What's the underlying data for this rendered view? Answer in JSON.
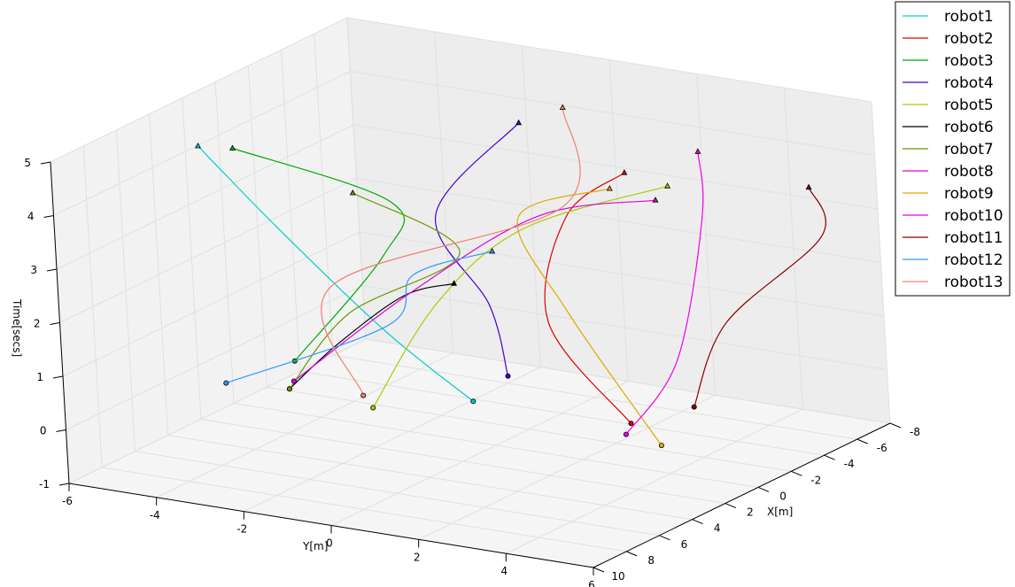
{
  "chart_data": {
    "type": "line",
    "projection": "3d",
    "title": "",
    "xlabel": "X[m]",
    "ylabel": "Y[m]",
    "zlabel": "Time[secs]",
    "xlim": [
      -8,
      10
    ],
    "ylim": [
      -6,
      6
    ],
    "zlim": [
      -1,
      5
    ],
    "x_ticks": [
      "-8",
      "-6",
      "-4",
      "-2",
      "0",
      "2",
      "4",
      "6",
      "8",
      "10"
    ],
    "y_ticks": [
      "-6",
      "-4",
      "-2",
      "0",
      "2",
      "4",
      "6"
    ],
    "z_ticks": [
      "-1",
      "0",
      "1",
      "2",
      "3",
      "4",
      "5"
    ],
    "grid": true,
    "legend_position": "top-right",
    "start_marker": "circle",
    "end_marker": "triangle",
    "series": [
      {
        "name": "robot1",
        "color": "#00cccc",
        "x": [
          1.2,
          3.5,
          4.2,
          3.8
        ],
        "y": [
          0.0,
          -1.0,
          -3.0,
          -5.0
        ],
        "z": [
          0,
          1.5,
          3.2,
          4.5
        ]
      },
      {
        "name": "robot2",
        "color": "#dd0000",
        "x": [
          0.9,
          1.6,
          -1.6,
          -1.6
        ],
        "y": [
          3.5,
          2.0,
          1.3,
          2.7
        ],
        "z": [
          0,
          1.8,
          3.2,
          4.2
        ]
      },
      {
        "name": "robot3",
        "color": "#00aa00",
        "x": [
          0.1,
          -2.7,
          -1.3,
          1.0
        ],
        "y": [
          -4.5,
          -3.4,
          -2.6,
          -5.3
        ],
        "z": [
          0,
          1.7,
          3.0,
          4.0
        ]
      },
      {
        "name": "robot4",
        "color": "#4400cc",
        "x": [
          -1.7,
          -0.6,
          -0.8,
          -3.2
        ],
        "y": [
          -0.3,
          -0.2,
          -1.4,
          -0.3
        ],
        "z": [
          0,
          1.5,
          3.0,
          4.5
        ]
      },
      {
        "name": "robot5",
        "color": "#aacc00",
        "x": [
          3.3,
          0.4,
          -0.8,
          0.5
        ],
        "y": [
          -1.5,
          -1.0,
          0.6,
          4.5
        ],
        "z": [
          0,
          1.6,
          3.0,
          4.5
        ]
      },
      {
        "name": "robot6",
        "color": "#000000",
        "x": [
          2.8,
          1.3,
          -0.7,
          0.4
        ],
        "y": [
          -3.6,
          -3.0,
          -2.2,
          -0.6
        ],
        "z": [
          0,
          0.7,
          1.4,
          2.0
        ]
      },
      {
        "name": "robot7",
        "color": "#669900",
        "x": [
          2.8,
          -0.2,
          -2.6,
          -1.6
        ],
        "y": [
          -3.6,
          -3.3,
          -1.6,
          -3.6
        ],
        "z": [
          0,
          1.0,
          2.0,
          3.0
        ]
      },
      {
        "name": "robot8",
        "color": "#dd00dd",
        "x": [
          2.0,
          -0.6,
          -1.2,
          1.0
        ],
        "y": [
          -3.8,
          -2.0,
          0.8,
          4.4
        ],
        "z": [
          0,
          1.5,
          3.2,
          4.3
        ]
      },
      {
        "name": "robot9",
        "color": "#ddaa00",
        "x": [
          2.5,
          0.4,
          -0.8,
          0.6
        ],
        "y": [
          4.8,
          2.0,
          0.5,
          3.2
        ],
        "z": [
          0,
          1.8,
          3.2,
          4.3
        ]
      },
      {
        "name": "robot10",
        "color": "#ee00ee",
        "x": [
          2.0,
          1.8,
          -4.5,
          -3.2
        ],
        "y": [
          3.8,
          5.0,
          3.3,
          3.8
        ],
        "z": [
          0,
          1.5,
          3.0,
          4.5
        ]
      },
      {
        "name": "robot11",
        "color": "#880000",
        "x": [
          -1.6,
          -2.5,
          -4.6,
          -4.0
        ],
        "y": [
          4.0,
          4.5,
          6.0,
          6.0
        ],
        "z": [
          0,
          1.5,
          3.0,
          4.0
        ]
      },
      {
        "name": "robot12",
        "color": "#3399ff",
        "x": [
          3.2,
          -0.2,
          -0.8,
          -1.2
        ],
        "y": [
          -4.9,
          -2.4,
          -2.0,
          -0.3
        ],
        "z": [
          0,
          0.9,
          1.8,
          2.4
        ]
      },
      {
        "name": "robot13",
        "color": "#f08070",
        "x": [
          2.3,
          0.5,
          -3.5,
          -3.8
        ],
        "y": [
          -2.1,
          -3.4,
          0.5,
          0.5
        ],
        "z": [
          0,
          1.6,
          3.0,
          4.8
        ]
      }
    ]
  }
}
